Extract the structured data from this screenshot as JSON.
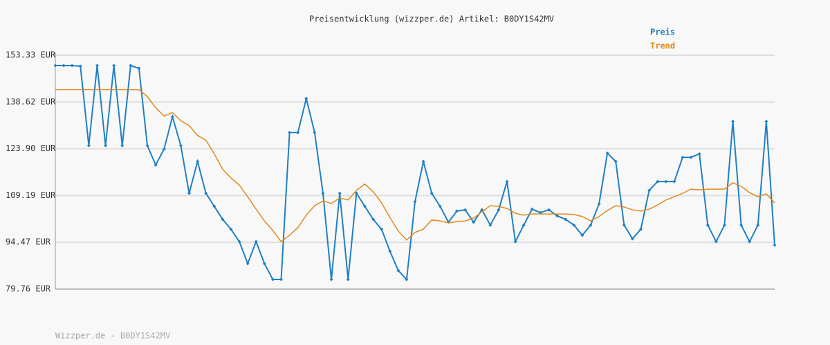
{
  "chart_data": {
    "type": "line",
    "title": "Preisentwicklung (wizzper.de) Artikel: B0DY1S42MV",
    "footer": "Wizzper.de - B0DY1S42MV",
    "ylim": [
      79.76,
      153.33
    ],
    "yticks": [
      {
        "value": 79.76,
        "label": "79.76 EUR"
      },
      {
        "value": 94.47,
        "label": "94.47 EUR"
      },
      {
        "value": 109.19,
        "label": "109.19 EUR"
      },
      {
        "value": 123.9,
        "label": "123.90 EUR"
      },
      {
        "value": 138.62,
        "label": "138.62 EUR"
      },
      {
        "value": 153.33,
        "label": "153.33 EUR"
      }
    ],
    "grid": true,
    "legend": "top-right",
    "series": [
      {
        "name": "Preis",
        "color": "#1f7fc4",
        "markers": true,
        "values": [
          150.07,
          150.07,
          150.07,
          149.86,
          124.9,
          150.07,
          124.9,
          150.07,
          124.9,
          150.07,
          149.2,
          124.9,
          118.8,
          123.8,
          134.0,
          124.9,
          109.9,
          119.9,
          109.9,
          105.8,
          101.7,
          98.6,
          94.7,
          87.8,
          94.7,
          87.8,
          82.8,
          82.8,
          129.0,
          129.0,
          139.7,
          129.0,
          109.9,
          82.8,
          109.9,
          82.8,
          109.9,
          105.8,
          101.7,
          98.6,
          91.7,
          85.6,
          82.8,
          107.3,
          119.9,
          109.9,
          105.8,
          100.8,
          104.3,
          104.7,
          100.8,
          104.7,
          99.9,
          104.7,
          113.6,
          94.7,
          99.9,
          104.9,
          103.8,
          104.7,
          102.8,
          101.7,
          99.9,
          96.7,
          99.9,
          106.5,
          122.5,
          119.9,
          99.9,
          95.6,
          98.6,
          110.8,
          113.6,
          113.6,
          113.6,
          121.2,
          121.2,
          122.3,
          99.9,
          94.7,
          99.9,
          132.5,
          99.9,
          94.7,
          99.9,
          132.5,
          93.6
        ]
      },
      {
        "name": "Trend",
        "color": "#e0891c",
        "markers": false,
        "values": [
          142.5,
          142.5,
          142.5,
          142.5,
          142.5,
          142.5,
          142.5,
          142.5,
          142.5,
          142.5,
          142.5,
          140.3,
          136.8,
          134.2,
          135.3,
          132.7,
          131.2,
          128.1,
          126.6,
          122.3,
          117.5,
          114.7,
          112.5,
          108.8,
          104.9,
          101.2,
          98.2,
          94.7,
          96.7,
          99.1,
          103.0,
          106.0,
          107.5,
          106.7,
          108.4,
          107.8,
          110.8,
          112.8,
          110.4,
          106.9,
          102.3,
          98.0,
          95.2,
          97.6,
          98.6,
          101.5,
          101.2,
          100.6,
          101.0,
          101.2,
          102.1,
          104.1,
          106.0,
          105.8,
          105.1,
          103.6,
          103.0,
          103.4,
          103.4,
          103.4,
          103.4,
          103.4,
          103.2,
          102.6,
          101.2,
          102.6,
          104.5,
          106.0,
          105.6,
          104.7,
          104.3,
          104.9,
          106.2,
          107.8,
          108.8,
          109.9,
          111.2,
          111.0,
          111.2,
          111.2,
          111.2,
          113.2,
          112.1,
          110.1,
          108.8,
          109.7,
          106.9
        ]
      }
    ]
  }
}
